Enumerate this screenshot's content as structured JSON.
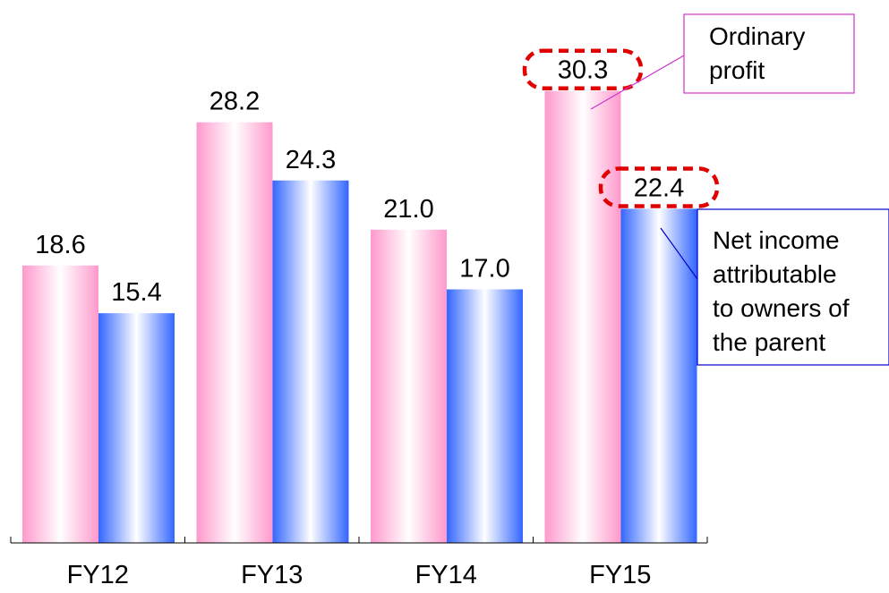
{
  "chart_data": {
    "type": "bar",
    "categories": [
      "FY12",
      "FY13",
      "FY14",
      "FY15"
    ],
    "series": [
      {
        "name": "Ordinary profit",
        "values": [
          18.6,
          28.2,
          21.0,
          30.3
        ],
        "color": "#ff99cc"
      },
      {
        "name": "Net income attributable to owners of the parent",
        "values": [
          15.4,
          24.3,
          17.0,
          22.4
        ],
        "color": "#3366ff"
      }
    ],
    "value_labels": [
      [
        "18.6",
        "28.2",
        "21.0",
        "30.3"
      ],
      [
        "15.4",
        "24.3",
        "17.0",
        "22.4"
      ]
    ],
    "highlighted": [
      {
        "series": 0,
        "index": 3
      },
      {
        "series": 1,
        "index": 3
      }
    ],
    "highlight_color": "#e00000",
    "callouts": [
      {
        "lines": [
          "Ordinary",
          "profit"
        ],
        "border_color": "#cc33cc"
      },
      {
        "lines": [
          "Net income",
          "attributable",
          "to owners of",
          "the parent"
        ],
        "border_color": "#0000cc"
      }
    ],
    "ylim": [
      0,
      34
    ],
    "grid": false,
    "legend": "callouts"
  }
}
